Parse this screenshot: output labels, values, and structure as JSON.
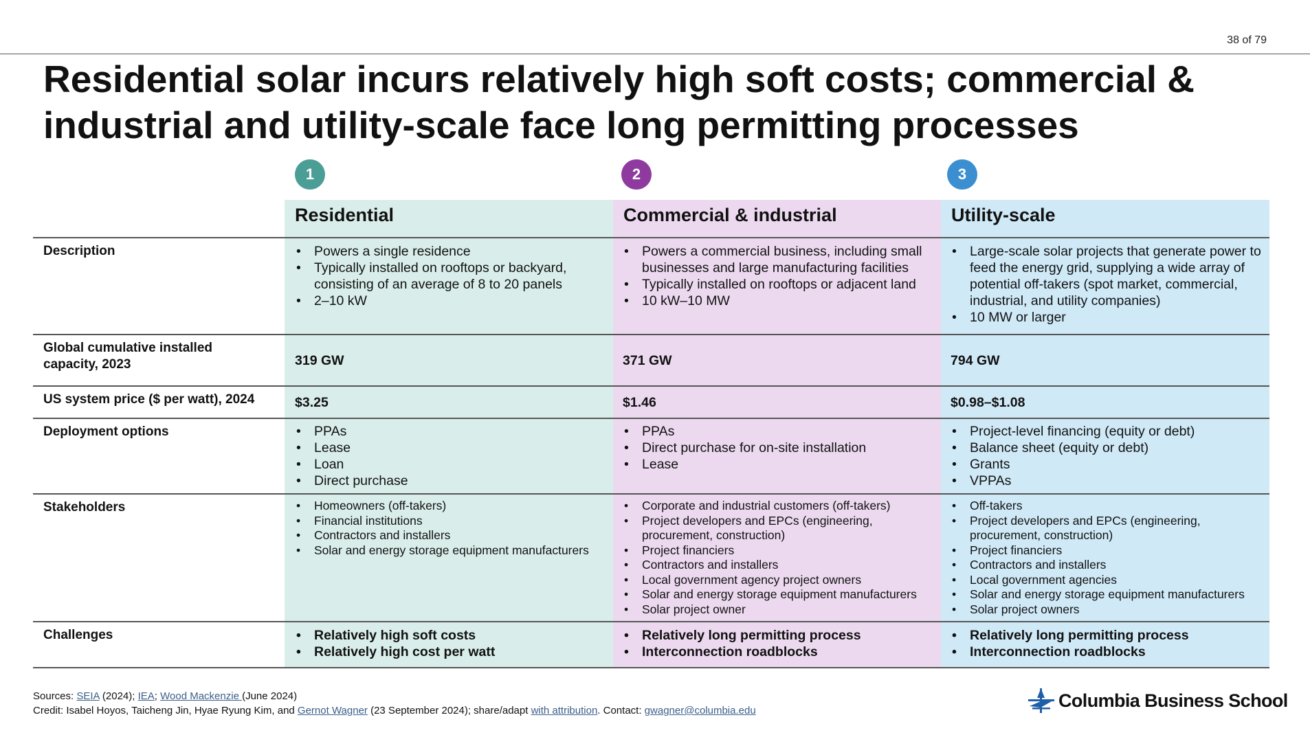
{
  "page_number": "38 of 79",
  "title": "Residential solar incurs relatively high soft costs; commercial & industrial and utility-scale face long permitting processes",
  "columns": [
    {
      "badge": "1",
      "header": "Residential",
      "badge_color": "#4a9e95",
      "bg_color": "#d9eeea"
    },
    {
      "badge": "2",
      "header": "Commercial & industrial",
      "badge_color": "#8e3a9e",
      "bg_color": "#ecd9ef"
    },
    {
      "badge": "3",
      "header": "Utility-scale",
      "badge_color": "#3b8fd0",
      "bg_color": "#cfe9f7"
    }
  ],
  "rows": {
    "description": {
      "label": "Description",
      "cells": [
        [
          "Powers a single residence",
          "Typically installed on rooftops or backyard, consisting of an average of 8 to 20 panels",
          "2–10 kW"
        ],
        [
          "Powers a commercial business, including small businesses and large manufacturing facilities",
          "Typically installed on rooftops or adjacent land",
          "10 kW–10 MW"
        ],
        [
          "Large-scale solar projects that generate power to feed the energy grid, supplying a wide array of potential off-takers (spot market, commercial, industrial, and utility companies)",
          "10 MW or larger"
        ]
      ]
    },
    "capacity": {
      "label": "Global cumulative installed capacity, 2023",
      "cells": [
        "319 GW",
        "371 GW",
        "794 GW"
      ]
    },
    "price": {
      "label": "US system price ($ per watt), 2024",
      "cells": [
        "$3.25",
        "$1.46",
        "$0.98–$1.08"
      ]
    },
    "deployment": {
      "label": "Deployment options",
      "cells": [
        [
          "PPAs",
          "Lease",
          "Loan",
          "Direct purchase"
        ],
        [
          "PPAs",
          "Direct purchase for on-site installation",
          "Lease"
        ],
        [
          "Project-level financing (equity or debt)",
          "Balance sheet (equity or debt)",
          "Grants",
          "VPPAs"
        ]
      ]
    },
    "stakeholders": {
      "label": "Stakeholders",
      "cells": [
        [
          "Homeowners (off-takers)",
          "Financial institutions",
          "Contractors and installers",
          "Solar and energy storage equipment manufacturers"
        ],
        [
          "Corporate and industrial customers (off-takers)",
          "Project developers and EPCs (engineering, procurement, construction)",
          "Project financiers",
          "Contractors and installers",
          "Local government agency project owners",
          "Solar and energy storage equipment manufacturers",
          "Solar project owner"
        ],
        [
          "Off-takers",
          "Project developers and EPCs (engineering, procurement, construction)",
          "Project financiers",
          "Contractors and installers",
          "Local government agencies",
          "Solar and energy storage equipment manufacturers",
          "Solar project owners"
        ]
      ]
    },
    "challenges": {
      "label": "Challenges",
      "cells": [
        [
          "Relatively high soft costs",
          "Relatively high cost per watt"
        ],
        [
          "Relatively long permitting process",
          "Interconnection roadblocks"
        ],
        [
          "Relatively long permitting process",
          "Interconnection roadblocks"
        ]
      ]
    }
  },
  "footer": {
    "sources_prefix": "Sources: ",
    "seia": "SEIA",
    "seia_year": " (2024); ",
    "iea": "IEA",
    "sep": "; ",
    "wood": "Wood Mackenzie ",
    "wood_date": "(June 2024)",
    "credit_prefix": "Credit: Isabel Hoyos, Taicheng Jin, Hyae Ryung Kim, and ",
    "author": "Gernot Wagner",
    "credit_mid": " (23 September 2024); share/adapt ",
    "attribution": "with attribution",
    "contact_prefix": ". Contact: ",
    "email": "gwagner@columbia.edu"
  },
  "logo": {
    "text": "Columbia Business School",
    "icon": "cbs-crown-logo-icon",
    "color": "#1f5fa8"
  }
}
